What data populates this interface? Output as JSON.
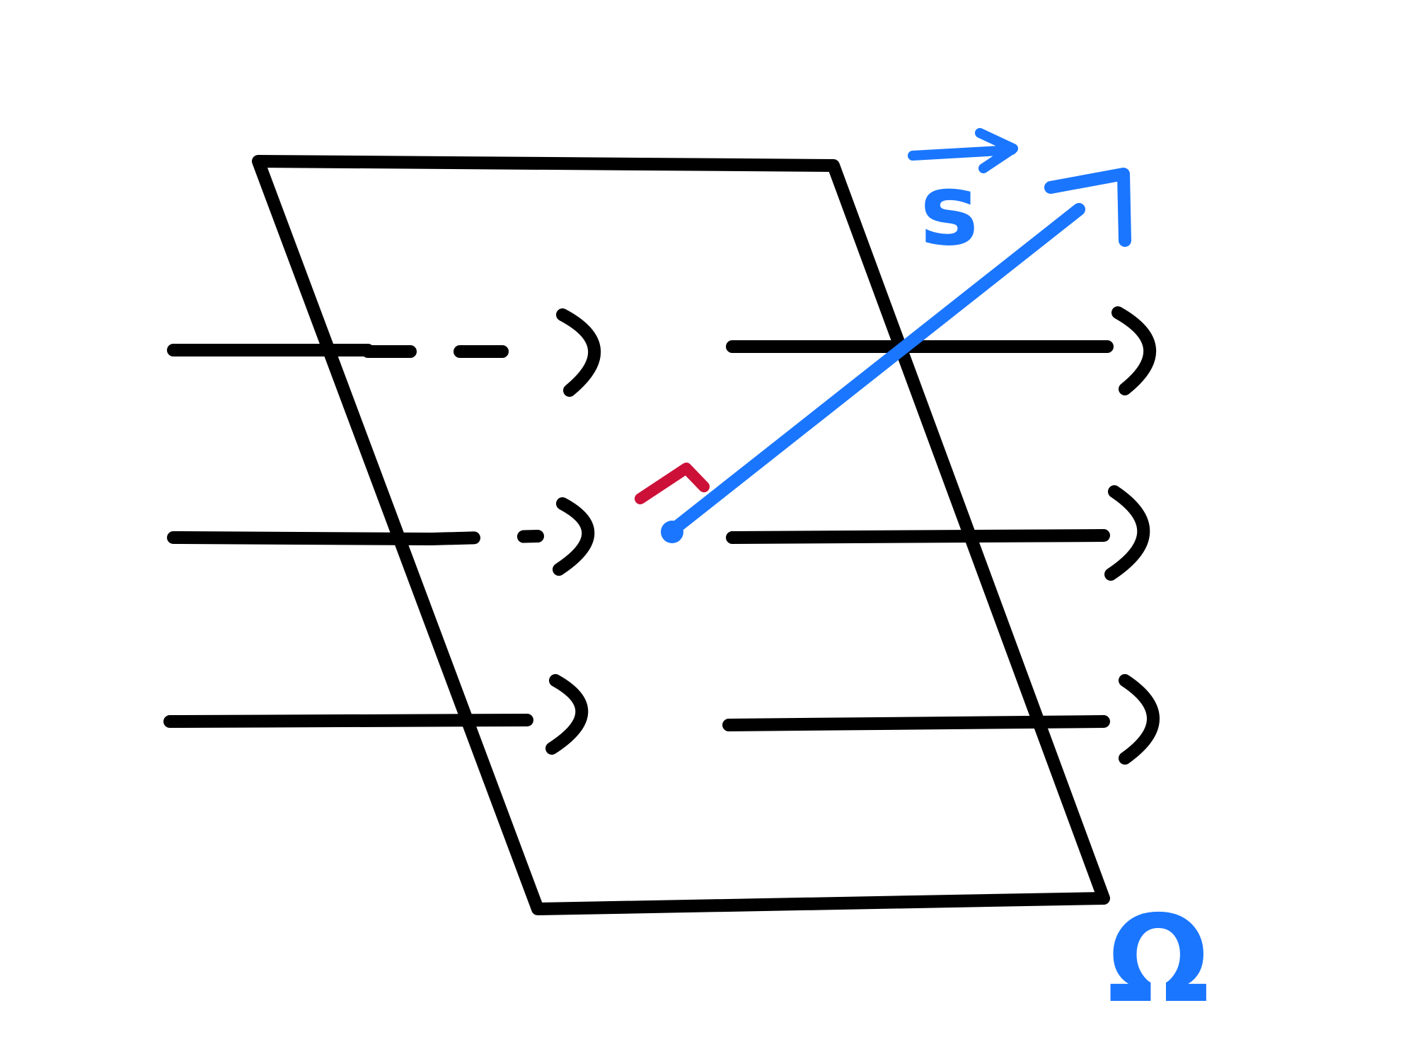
{
  "diagram": {
    "vector_label": "s",
    "surface_label": "Ω",
    "field_line_rows": 3,
    "colors": {
      "surface": "#000000",
      "field_lines": "#000000",
      "area_vector": "#1a76ff",
      "right_angle_marker": "#cc1038",
      "labels": "#1a76ff"
    }
  }
}
